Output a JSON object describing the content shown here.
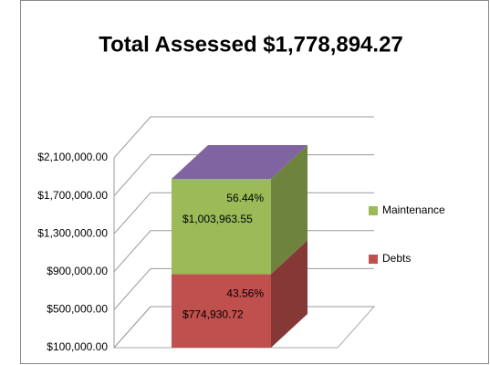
{
  "chart_data": {
    "type": "bar3d_stacked",
    "title": "Total Assessed $1,778,894.27",
    "categories": [
      null
    ],
    "series": [
      {
        "name": "Debts",
        "color": "#c0504d",
        "values": [
          774930.72
        ],
        "value_labels": [
          "$774,930.72"
        ],
        "share": [
          43.56
        ],
        "share_labels": [
          "43.56%"
        ]
      },
      {
        "name": "Maintenance",
        "color": "#9bbb59",
        "values": [
          1003963.55
        ],
        "value_labels": [
          "$1,003,963.55"
        ],
        "share": [
          56.44
        ],
        "share_labels": [
          "56.44%"
        ]
      }
    ],
    "ylim": [
      100000,
      2100000
    ],
    "yticks": [
      {
        "value": 100000,
        "label": "$100,000.00"
      },
      {
        "value": 500000,
        "label": "$500,000.00"
      },
      {
        "value": 900000,
        "label": "$900,000.00"
      },
      {
        "value": 1300000,
        "label": "$1,300,000.00"
      },
      {
        "value": 1700000,
        "label": "$1,700,000.00"
      },
      {
        "value": 2100000,
        "label": "$2,100,000.00"
      }
    ],
    "grid": true
  }
}
